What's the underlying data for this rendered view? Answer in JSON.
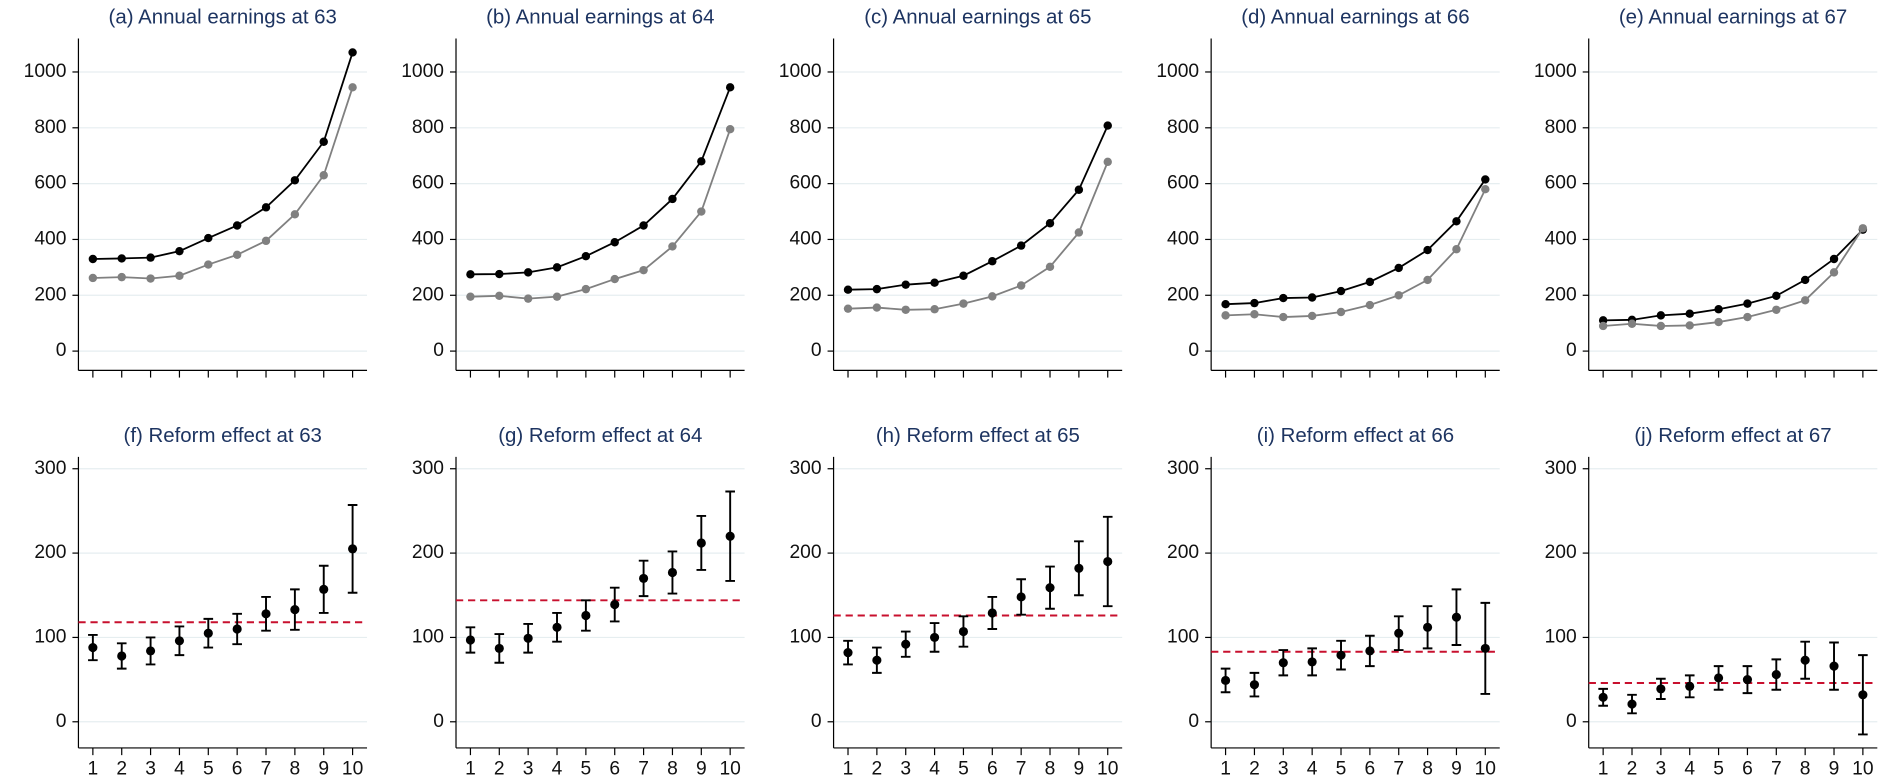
{
  "chart_data": [
    {
      "type": "line",
      "title": "(a) Annual earnings at 63",
      "x": [
        1,
        2,
        3,
        4,
        5,
        6,
        7,
        8,
        9,
        10
      ],
      "xlim": [
        0.5,
        10.5
      ],
      "xticks": [
        1,
        2,
        3,
        4,
        5,
        6,
        7,
        8,
        9,
        10
      ],
      "xtick_labels": false,
      "ylim": [
        -69,
        1120
      ],
      "yticks": [
        0,
        200,
        400,
        600,
        800,
        1000
      ],
      "grid": true,
      "series": [
        {
          "color": "#000000",
          "values": [
            330,
            332,
            335,
            358,
            405,
            450,
            515,
            612,
            750,
            1070
          ]
        },
        {
          "color": "#808080",
          "values": [
            262,
            265,
            260,
            270,
            310,
            345,
            395,
            490,
            630,
            945
          ]
        }
      ]
    },
    {
      "type": "line",
      "title": "(b) Annual earnings at 64",
      "x": [
        1,
        2,
        3,
        4,
        5,
        6,
        7,
        8,
        9,
        10
      ],
      "xlim": [
        0.5,
        10.5
      ],
      "xticks": [
        1,
        2,
        3,
        4,
        5,
        6,
        7,
        8,
        9,
        10
      ],
      "xtick_labels": false,
      "ylim": [
        -69,
        1120
      ],
      "yticks": [
        0,
        200,
        400,
        600,
        800,
        1000
      ],
      "grid": true,
      "series": [
        {
          "color": "#000000",
          "values": [
            275,
            276,
            282,
            300,
            340,
            390,
            450,
            545,
            680,
            945
          ]
        },
        {
          "color": "#808080",
          "values": [
            195,
            198,
            188,
            195,
            222,
            258,
            290,
            375,
            500,
            795
          ]
        }
      ]
    },
    {
      "type": "line",
      "title": "(c) Annual earnings at 65",
      "x": [
        1,
        2,
        3,
        4,
        5,
        6,
        7,
        8,
        9,
        10
      ],
      "xlim": [
        0.5,
        10.5
      ],
      "xticks": [
        1,
        2,
        3,
        4,
        5,
        6,
        7,
        8,
        9,
        10
      ],
      "xtick_labels": false,
      "ylim": [
        -69,
        1120
      ],
      "yticks": [
        0,
        200,
        400,
        600,
        800,
        1000
      ],
      "grid": true,
      "series": [
        {
          "color": "#000000",
          "values": [
            220,
            222,
            238,
            245,
            270,
            322,
            378,
            458,
            578,
            808
          ]
        },
        {
          "color": "#808080",
          "values": [
            152,
            156,
            148,
            150,
            170,
            196,
            235,
            302,
            425,
            678
          ]
        }
      ]
    },
    {
      "type": "line",
      "title": "(d) Annual earnings at 66",
      "x": [
        1,
        2,
        3,
        4,
        5,
        6,
        7,
        8,
        9,
        10
      ],
      "xlim": [
        0.5,
        10.5
      ],
      "xticks": [
        1,
        2,
        3,
        4,
        5,
        6,
        7,
        8,
        9,
        10
      ],
      "xtick_labels": false,
      "ylim": [
        -69,
        1120
      ],
      "yticks": [
        0,
        200,
        400,
        600,
        800,
        1000
      ],
      "grid": true,
      "series": [
        {
          "color": "#000000",
          "values": [
            168,
            172,
            190,
            192,
            215,
            248,
            298,
            362,
            465,
            615
          ]
        },
        {
          "color": "#808080",
          "values": [
            128,
            132,
            122,
            126,
            140,
            165,
            200,
            255,
            365,
            580
          ]
        }
      ]
    },
    {
      "type": "line",
      "title": "(e) Annual earnings at 67",
      "x": [
        1,
        2,
        3,
        4,
        5,
        6,
        7,
        8,
        9,
        10
      ],
      "xlim": [
        0.5,
        10.5
      ],
      "xticks": [
        1,
        2,
        3,
        4,
        5,
        6,
        7,
        8,
        9,
        10
      ],
      "xtick_labels": false,
      "ylim": [
        -69,
        1120
      ],
      "yticks": [
        0,
        200,
        400,
        600,
        800,
        1000
      ],
      "grid": true,
      "series": [
        {
          "color": "#000000",
          "values": [
            110,
            112,
            128,
            134,
            150,
            170,
            198,
            255,
            330,
            435
          ]
        },
        {
          "color": "#808080",
          "values": [
            90,
            98,
            90,
            92,
            104,
            122,
            148,
            182,
            282,
            440
          ]
        }
      ]
    },
    {
      "type": "errorbar",
      "title": "(f) Reform effect at 63",
      "x": [
        1,
        2,
        3,
        4,
        5,
        6,
        7,
        8,
        9,
        10
      ],
      "xlim": [
        0.5,
        10.5
      ],
      "xticks": [
        1,
        2,
        3,
        4,
        5,
        6,
        7,
        8,
        9,
        10
      ],
      "xtick_labels": true,
      "ylim": [
        -31,
        314
      ],
      "yticks": [
        0,
        100,
        200,
        300
      ],
      "grid": true,
      "color": "#000000",
      "values": [
        88,
        78,
        84,
        96,
        105,
        110,
        128,
        133,
        157,
        205
      ],
      "errors": [
        15,
        15,
        16,
        17,
        17,
        18,
        20,
        24,
        28,
        52
      ],
      "hline": 118,
      "hline_color": "#c8102e"
    },
    {
      "type": "errorbar",
      "title": "(g) Reform effect at 64",
      "x": [
        1,
        2,
        3,
        4,
        5,
        6,
        7,
        8,
        9,
        10
      ],
      "xlim": [
        0.5,
        10.5
      ],
      "xticks": [
        1,
        2,
        3,
        4,
        5,
        6,
        7,
        8,
        9,
        10
      ],
      "xtick_labels": true,
      "ylim": [
        -31,
        314
      ],
      "yticks": [
        0,
        100,
        200,
        300
      ],
      "grid": true,
      "color": "#000000",
      "values": [
        97,
        87,
        99,
        112,
        126,
        139,
        170,
        177,
        212,
        220
      ],
      "errors": [
        15,
        17,
        17,
        17,
        18,
        20,
        21,
        25,
        32,
        53
      ],
      "hline": 144,
      "hline_color": "#c8102e"
    },
    {
      "type": "errorbar",
      "title": "(h) Reform effect at 65",
      "x": [
        1,
        2,
        3,
        4,
        5,
        6,
        7,
        8,
        9,
        10
      ],
      "xlim": [
        0.5,
        10.5
      ],
      "xticks": [
        1,
        2,
        3,
        4,
        5,
        6,
        7,
        8,
        9,
        10
      ],
      "xtick_labels": true,
      "ylim": [
        -31,
        314
      ],
      "yticks": [
        0,
        100,
        200,
        300
      ],
      "grid": true,
      "color": "#000000",
      "values": [
        82,
        73,
        92,
        100,
        107,
        129,
        148,
        159,
        182,
        190
      ],
      "errors": [
        14,
        15,
        15,
        17,
        18,
        19,
        21,
        25,
        32,
        53
      ],
      "hline": 126,
      "hline_color": "#c8102e"
    },
    {
      "type": "errorbar",
      "title": "(i) Reform effect at 66",
      "x": [
        1,
        2,
        3,
        4,
        5,
        6,
        7,
        8,
        9,
        10
      ],
      "xlim": [
        0.5,
        10.5
      ],
      "xticks": [
        1,
        2,
        3,
        4,
        5,
        6,
        7,
        8,
        9,
        10
      ],
      "xtick_labels": true,
      "ylim": [
        -31,
        314
      ],
      "yticks": [
        0,
        100,
        200,
        300
      ],
      "grid": true,
      "color": "#000000",
      "values": [
        49,
        44,
        70,
        71,
        79,
        84,
        105,
        112,
        124,
        87
      ],
      "errors": [
        14,
        14,
        15,
        16,
        17,
        18,
        20,
        25,
        33,
        54
      ],
      "hline": 83,
      "hline_color": "#c8102e"
    },
    {
      "type": "errorbar",
      "title": "(j) Reform effect at 67",
      "x": [
        1,
        2,
        3,
        4,
        5,
        6,
        7,
        8,
        9,
        10
      ],
      "xlim": [
        0.5,
        10.5
      ],
      "xticks": [
        1,
        2,
        3,
        4,
        5,
        6,
        7,
        8,
        9,
        10
      ],
      "xtick_labels": true,
      "ylim": [
        -31,
        314
      ],
      "yticks": [
        0,
        100,
        200,
        300
      ],
      "grid": true,
      "color": "#000000",
      "values": [
        29,
        21,
        39,
        42,
        52,
        50,
        56,
        73,
        66,
        32
      ],
      "errors": [
        10,
        11,
        12,
        13,
        14,
        16,
        18,
        22,
        28,
        47
      ],
      "hline": 46,
      "hline_color": "#c8102e"
    }
  ]
}
